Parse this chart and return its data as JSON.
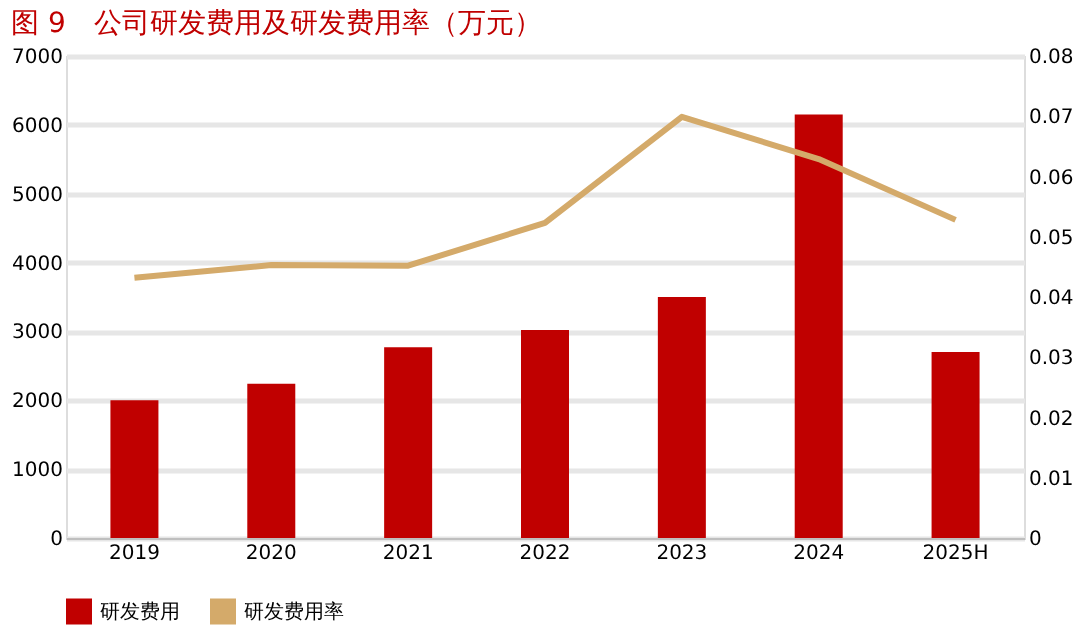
{
  "chart_data": {
    "type": "bar",
    "title": "图 9　公司研发费用及研发费用率（万元）",
    "categories": [
      "2019",
      "2020",
      "2021",
      "2022",
      "2023",
      "2024",
      "2025H"
    ],
    "series": [
      {
        "name": "研发费用",
        "color": "#c00000",
        "values": [
          2000,
          2240,
          2770,
          3020,
          3500,
          6150,
          2700
        ]
      },
      {
        "name": "研发费用率",
        "type": "line",
        "axis": "y2",
        "color": "#d4aa6a",
        "values": [
          0.0432,
          0.0453,
          0.0452,
          0.0523,
          0.0699,
          0.0629,
          0.0528
        ]
      }
    ],
    "ylim": [
      0,
      7000
    ],
    "yticks": [
      0,
      1000,
      2000,
      3000,
      4000,
      5000,
      6000,
      7000
    ],
    "y2lim": [
      0,
      0.08
    ],
    "y2ticks": [
      0,
      0.01,
      0.02,
      0.03,
      0.04,
      0.05,
      0.06,
      0.07,
      0.08
    ],
    "grid": "y",
    "legend": "bottom",
    "marker": "none",
    "line_style": "solid"
  }
}
